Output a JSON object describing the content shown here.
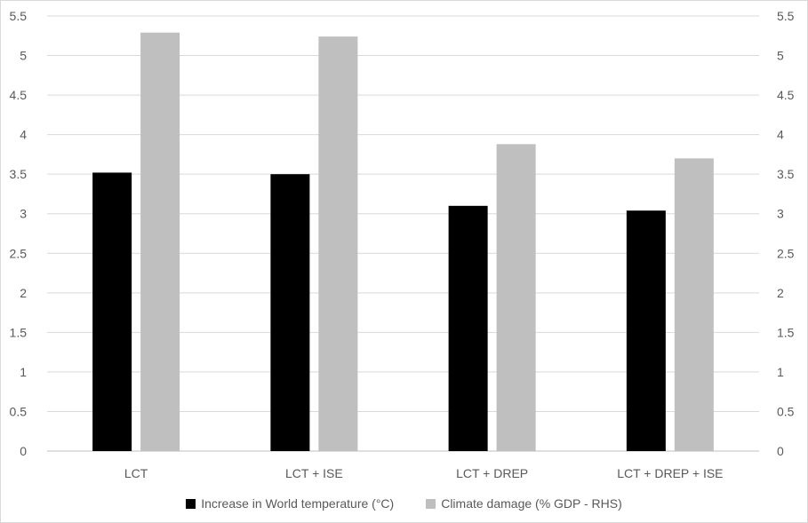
{
  "chart_data": {
    "type": "bar",
    "categories": [
      "LCT",
      "LCT + ISE",
      "LCT + DREP",
      "LCT + DREP + ISE"
    ],
    "series": [
      {
        "name": "Increase in World temperature (°C)",
        "values": [
          3.52,
          3.5,
          3.1,
          3.04
        ],
        "color": "#000000",
        "axis": "left"
      },
      {
        "name": "Climate damage (% GDP - RHS)",
        "values": [
          5.29,
          5.24,
          3.88,
          3.7
        ],
        "color": "#bfbfbf",
        "axis": "right"
      }
    ],
    "y_left": {
      "ylim": [
        0,
        5.5
      ],
      "ticks": [
        "0",
        "0.5",
        "1",
        "1.5",
        "2",
        "2.5",
        "3",
        "3.5",
        "4",
        "4.5",
        "5",
        "5.5"
      ]
    },
    "y_right": {
      "ylim": [
        0,
        5.5
      ],
      "ticks": [
        "0",
        "0.5",
        "1",
        "1.5",
        "2",
        "2.5",
        "3",
        "3.5",
        "4",
        "4.5",
        "5",
        "5.5"
      ]
    },
    "grid": true,
    "legend_position": "bottom"
  }
}
